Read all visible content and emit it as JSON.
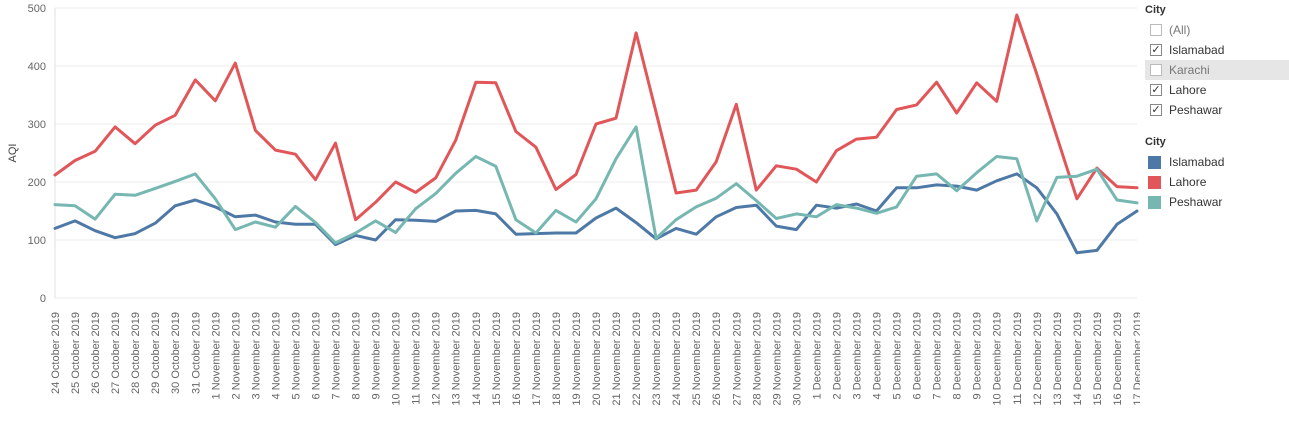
{
  "chart_data": {
    "type": "line",
    "ylabel": "AQI",
    "xlabel": "",
    "ylim": [
      0,
      500
    ],
    "yticks": [
      0,
      100,
      200,
      300,
      400,
      500
    ],
    "grid": true,
    "categories": [
      "24 October 2019",
      "25 October 2019",
      "26 October 2019",
      "27 October 2019",
      "28 October 2019",
      "29 October 2019",
      "30 October 2019",
      "31 October 2019",
      "1 November 2019",
      "2 November 2019",
      "3 November 2019",
      "4 November 2019",
      "5 November 2019",
      "6 November 2019",
      "7 November 2019",
      "8 November 2019",
      "9 November 2019",
      "10 November 2019",
      "11 November 2019",
      "12 November 2019",
      "13 November 2019",
      "14 November 2019",
      "15 November 2019",
      "16 November 2019",
      "17 November 2019",
      "18 November 2019",
      "19 November 2019",
      "20 November 2019",
      "21 November 2019",
      "22 November 2019",
      "23 November 2019",
      "24 November 2019",
      "25 November 2019",
      "26 November 2019",
      "27 November 2019",
      "28 November 2019",
      "29 November 2019",
      "30 November 2019",
      "1 December 2019",
      "2 December 2019",
      "3 December 2019",
      "4 December 2019",
      "5 December 2019",
      "6 December 2019",
      "7 December 2019",
      "8 December 2019",
      "9 December 2019",
      "10 December 2019",
      "11 December 2019",
      "12 December 2019",
      "13 December 2019",
      "14 December 2019",
      "15 December 2019",
      "16 December 2019",
      "17 December 2019"
    ],
    "series": [
      {
        "name": "Islamabad",
        "color": "#4e79a7",
        "values": [
          120,
          133,
          116,
          104,
          111,
          129,
          159,
          169,
          157,
          140,
          143,
          131,
          127,
          127,
          92,
          108,
          100,
          135,
          134,
          132,
          150,
          151,
          145,
          110,
          111,
          112,
          112,
          138,
          155,
          130,
          102,
          120,
          110,
          140,
          156,
          160,
          124,
          118,
          160,
          155,
          162,
          150,
          190,
          190,
          195,
          193,
          186,
          202,
          214,
          190,
          145,
          78,
          82,
          127,
          150
        ]
      },
      {
        "name": "Lahore",
        "color": "#e15759",
        "values": [
          212,
          237,
          253,
          295,
          266,
          298,
          315,
          376,
          340,
          405,
          289,
          255,
          248,
          204,
          267,
          135,
          165,
          200,
          182,
          207,
          272,
          372,
          371,
          287,
          260,
          187,
          213,
          300,
          310,
          457,
          320,
          181,
          186,
          235,
          334,
          186,
          228,
          222,
          200,
          254,
          274,
          277,
          325,
          333,
          372,
          319,
          371,
          339,
          488,
          386,
          278,
          171,
          224,
          192,
          190
        ]
      },
      {
        "name": "Peshawar",
        "color": "#76b7b2",
        "values": [
          161,
          159,
          136,
          179,
          177,
          189,
          201,
          214,
          171,
          118,
          131,
          122,
          158,
          130,
          95,
          112,
          133,
          113,
          154,
          180,
          215,
          244,
          227,
          135,
          112,
          151,
          131,
          171,
          240,
          295,
          103,
          135,
          157,
          172,
          197,
          168,
          137,
          145,
          140,
          161,
          155,
          146,
          157,
          210,
          214,
          185,
          216,
          244,
          240,
          133,
          208,
          210,
          222,
          169,
          164
        ]
      }
    ]
  },
  "filter": {
    "title": "City",
    "items": [
      {
        "label": "(All)",
        "checked": false
      },
      {
        "label": "Islamabad",
        "checked": true
      },
      {
        "label": "Karachi",
        "checked": false
      },
      {
        "label": "Lahore",
        "checked": true
      },
      {
        "label": "Peshawar",
        "checked": true
      }
    ]
  },
  "color_legend": {
    "title": "City",
    "items": [
      {
        "label": "Islamabad",
        "color": "#4e79a7"
      },
      {
        "label": "Lahore",
        "color": "#e15759"
      },
      {
        "label": "Peshawar",
        "color": "#76b7b2"
      }
    ]
  }
}
